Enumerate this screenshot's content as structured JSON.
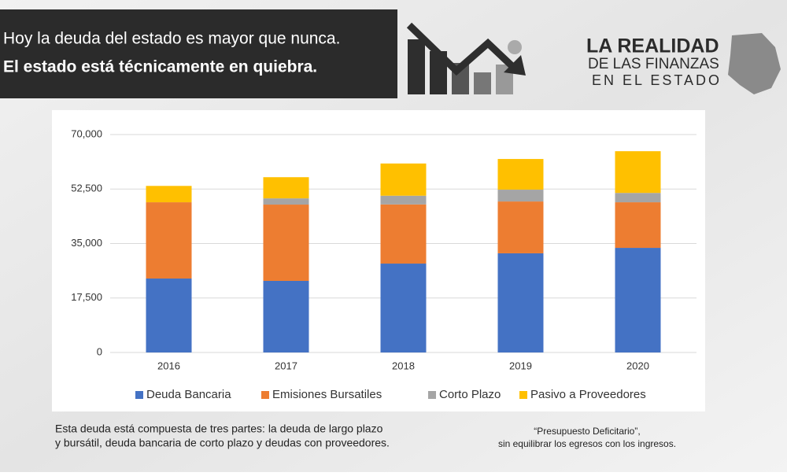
{
  "header": {
    "lines": [
      "Hoy la deuda del estado es mayor que nunca.",
      "El estado está técnicamente en quiebra."
    ]
  },
  "logo": {
    "lines": [
      "LA REALIDAD",
      "DE LAS FINANZAS",
      "EN EL ESTADO"
    ]
  },
  "notes": {
    "left": [
      "Esta deuda está compuesta de tres partes: la deuda de largo plazo",
      "y bursátil, deuda bancaria de corto plazo y deudas con proveedores."
    ],
    "right": [
      "“Presupuesto Deficitario”,",
      "sin equilibrar los egresos con los ingresos."
    ]
  },
  "chart_data": {
    "type": "bar",
    "stacked": true,
    "categories": [
      "2016",
      "2017",
      "2018",
      "2019",
      "2020"
    ],
    "series": [
      {
        "name": "Deuda Bancaria",
        "color": "#4472c4",
        "values": [
          23750,
          23000,
          28550,
          31850,
          33600
        ]
      },
      {
        "name": "Emisiones Bursatiles",
        "color": "#ed7d31",
        "values": [
          24500,
          24500,
          19000,
          16650,
          14650
        ]
      },
      {
        "name": "Corto Plazo",
        "color": "#a5a5a5",
        "values": [
          0,
          2000,
          2800,
          3800,
          3000
        ]
      },
      {
        "name": "Pasivo a Proveedores",
        "color": "#ffc000",
        "values": [
          5250,
          6800,
          10350,
          9850,
          13400
        ]
      }
    ],
    "ylim": [
      0,
      70000
    ],
    "yticks": [
      0,
      {
        "value": 17500,
        "label": "17,500"
      },
      {
        "value": 35000,
        "label": "35,000"
      },
      {
        "value": 52500,
        "label": "52,500"
      },
      {
        "value": 70000,
        "label": "70,000"
      }
    ],
    "grid": true,
    "legend": "bottom"
  }
}
